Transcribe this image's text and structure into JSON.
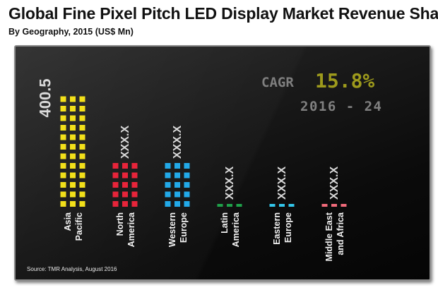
{
  "header": {
    "title": "Global Fine Pixel Pitch LED Display Market Revenue Share",
    "subtitle": "By Geography,  2015 (US$ Mn)"
  },
  "cagr": {
    "label": "CAGR",
    "value": "15.8%",
    "period": "2016 - 24"
  },
  "source": "Source: TMR Analysis, August 2016",
  "chart_data": {
    "type": "bar",
    "title": "Global Fine Pixel Pitch LED Display Market Revenue Share",
    "subtitle": "By Geography,  2015 (US$ Mn)",
    "categories": [
      [
        "Asia",
        "Pacific"
      ],
      [
        "North",
        "America"
      ],
      [
        "Western",
        "Europe"
      ],
      [
        "Latin",
        "America"
      ],
      [
        "Eastern",
        "Europe"
      ],
      [
        "Middle East",
        "and Africa"
      ]
    ],
    "value_labels": [
      "400.5",
      "XXX.X",
      "XXX.X",
      "XXX.X",
      "XXX.X",
      "XXX.X"
    ],
    "values": [
      400.5,
      160,
      160,
      40,
      40,
      40
    ],
    "colors": [
      "#f2e01a",
      "#e8243a",
      "#22a9e8",
      "#1fa24a",
      "#33c6ea",
      "#f06a7a"
    ],
    "grid": false,
    "legend": "none"
  }
}
